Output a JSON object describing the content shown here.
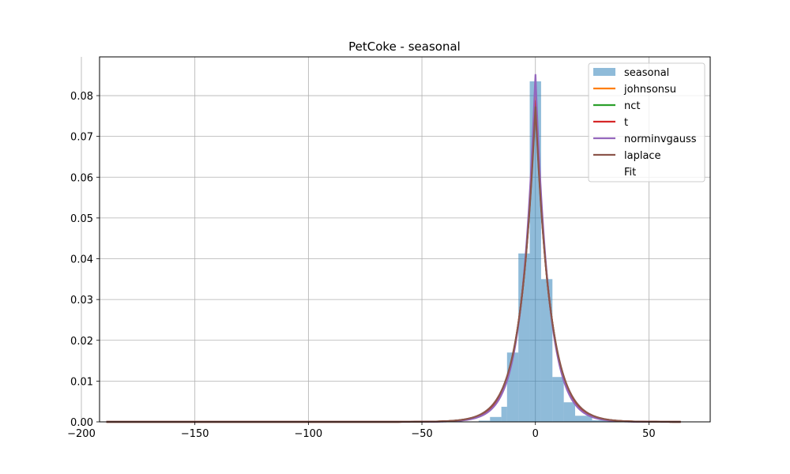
{
  "chart_data": {
    "type": "histogram",
    "title": "PetCoke - seasonal",
    "xlabel": "",
    "ylabel": "",
    "xlim": [
      -192,
      77
    ],
    "ylim": [
      0,
      0.0895
    ],
    "grid": true,
    "legend_position": "top-right",
    "x_ticks": [
      -200,
      -150,
      -100,
      -50,
      0,
      50
    ],
    "x_tick_labels": [
      "−200",
      "−150",
      "−100",
      "−50",
      "0",
      "50"
    ],
    "y_ticks": [
      0.0,
      0.01,
      0.02,
      0.03,
      0.04,
      0.05,
      0.06,
      0.07,
      0.08
    ],
    "y_tick_labels": [
      "0.00",
      "0.01",
      "0.02",
      "0.03",
      "0.04",
      "0.05",
      "0.06",
      "0.07",
      "0.08"
    ],
    "histogram": {
      "name": "seasonal",
      "color": "#1f77b4",
      "alpha": 0.5,
      "bins": [
        {
          "x0": -25,
          "x1": -20,
          "density": 0.0003
        },
        {
          "x0": -20,
          "x1": -15,
          "density": 0.0012
        },
        {
          "x0": -15,
          "x1": -12.5,
          "density": 0.0037
        },
        {
          "x0": -12.5,
          "x1": -7.5,
          "density": 0.017
        },
        {
          "x0": -7.5,
          "x1": -2.5,
          "density": 0.0413
        },
        {
          "x0": -2.5,
          "x1": 2.5,
          "density": 0.0835
        },
        {
          "x0": 2.5,
          "x1": 7.5,
          "density": 0.035
        },
        {
          "x0": 7.5,
          "x1": 12.5,
          "density": 0.011
        },
        {
          "x0": 12.5,
          "x1": 17.5,
          "density": 0.0048
        },
        {
          "x0": 17.5,
          "x1": 25,
          "density": 0.0015
        },
        {
          "x0": 25,
          "x1": 35,
          "density": 0.0004
        }
      ]
    },
    "curves": [
      {
        "name": "johnsonsu",
        "color": "#ff7f0e",
        "type": "laplace",
        "peak": 0.08,
        "loc": 0,
        "x_range": [
          -189,
          64
        ]
      },
      {
        "name": "nct",
        "color": "#2ca02c",
        "type": "laplace",
        "peak": 0.079,
        "loc": 0,
        "x_range": [
          -189,
          64
        ]
      },
      {
        "name": "t",
        "color": "#d62728",
        "type": "laplace",
        "peak": 0.079,
        "loc": 0,
        "x_range": [
          -189,
          64
        ]
      },
      {
        "name": "norminvgauss",
        "color": "#9467bd",
        "type": "laplace",
        "peak": 0.0855,
        "loc": 0,
        "x_range": [
          -189,
          64
        ]
      },
      {
        "name": "laplace",
        "color": "#8c564b",
        "type": "laplace",
        "peak": 0.0775,
        "loc": 0,
        "x_range": [
          -189,
          64
        ]
      }
    ],
    "legend_entries": [
      "seasonal",
      "johnsonsu",
      "nct",
      "t",
      "norminvgauss",
      "laplace",
      "Fit"
    ]
  }
}
